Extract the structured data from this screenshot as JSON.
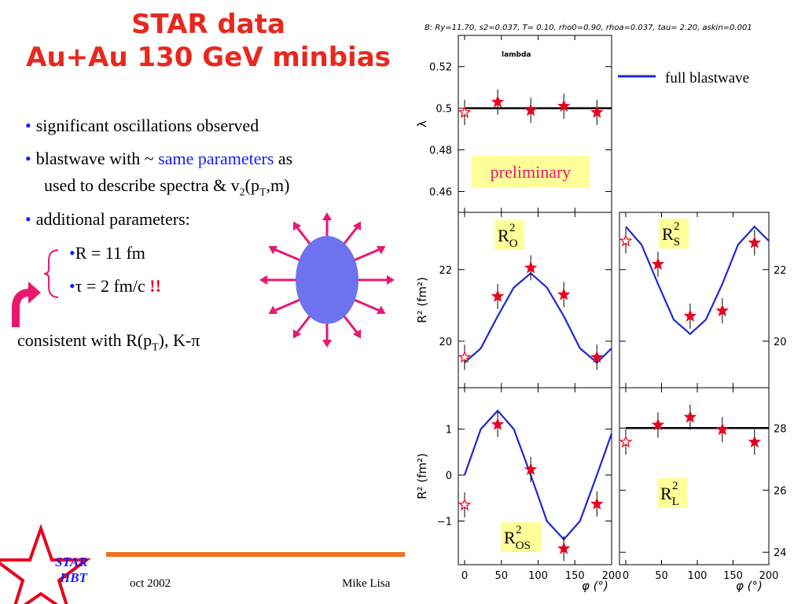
{
  "slide": {
    "title_line1": "STAR data",
    "title_line2": "Au+Au 130 GeV minbias",
    "bullets": [
      "significant oscillations observed",
      "additional parameters:"
    ],
    "bullet2": {
      "pre": "blastwave with ~ ",
      "highlight": "same parameters",
      "post": " as",
      "line2_pre": "used to describe spectra & v",
      "line2_sub1": "2",
      "line2_mid": "(p",
      "line2_sub2": "T",
      "line2_end": ",m)"
    },
    "sub_bullets": [
      {
        "text": "R = 11 fm",
        "emph": ""
      },
      {
        "text": "τ = 2 fm/c ",
        "emph": "!!"
      }
    ],
    "consistent": {
      "pre": "consistent with R(p",
      "sub": "T",
      "post": "), K-π"
    },
    "footer": {
      "date": "oct 2002",
      "author": "Mike Lisa",
      "logo_line1": "STAR",
      "logo_line2": "HBT"
    },
    "colors": {
      "title": "#e8281e",
      "accent_blue": "#1a1aff",
      "ellipse": "#6f72ef",
      "arrows": "#e8186e",
      "logo_star": "#e8001e"
    }
  },
  "chart_data": {
    "type": "scatter",
    "header": "B: Ry=11.70, s2=0.037, T= 0.10, rho0=0.90, rhoa=0.037, tau= 2.20, askin=0.001",
    "legend": "full blastwave",
    "preliminary": "preliminary",
    "x_label": "φ (°)",
    "x_ticks": [
      0,
      50,
      100,
      150,
      200
    ],
    "panels": [
      {
        "id": "lambda",
        "label": "lambda",
        "ylabel": "λ",
        "ylim": [
          0.45,
          0.535
        ],
        "yticks": [
          0.46,
          0.48,
          0.5,
          0.52
        ],
        "ytick_labels": [
          "0.46",
          "0.48",
          "0.5",
          "0.52"
        ],
        "points": [
          [
            0,
            0.498
          ],
          [
            45,
            0.503
          ],
          [
            90,
            0.499
          ],
          [
            135,
            0.501
          ],
          [
            180,
            0.498
          ]
        ],
        "hollow": [
          0
        ],
        "line_kind": "flat",
        "line": [
          [
            0,
            0.5
          ],
          [
            200,
            0.5
          ]
        ]
      },
      {
        "id": "Ro",
        "label_main": "R",
        "label_sub": "O",
        "label_sup": "2",
        "ylabel": "R² (fm²)",
        "ylim": [
          18.7,
          23.6
        ],
        "yticks": [
          20,
          22
        ],
        "ytick_labels": [
          "20",
          "22"
        ],
        "points": [
          [
            0,
            19.55
          ],
          [
            45,
            21.25
          ],
          [
            90,
            22.05
          ],
          [
            135,
            21.3
          ],
          [
            180,
            19.55
          ]
        ],
        "hollow": [
          0
        ],
        "line_kind": "curve",
        "line": [
          [
            0,
            19.4
          ],
          [
            22,
            19.8
          ],
          [
            45,
            20.7
          ],
          [
            67,
            21.5
          ],
          [
            90,
            21.9
          ],
          [
            112,
            21.5
          ],
          [
            135,
            20.7
          ],
          [
            157,
            19.8
          ],
          [
            180,
            19.4
          ],
          [
            200,
            19.8
          ]
        ]
      },
      {
        "id": "Rs",
        "label_main": "R",
        "label_sub": "S",
        "label_sup": "2",
        "ylabel": "",
        "ylim": [
          18.7,
          23.6
        ],
        "yticks": [
          20,
          22
        ],
        "ytick_labels": [
          "20",
          "22"
        ],
        "points": [
          [
            0,
            22.8
          ],
          [
            45,
            22.15
          ],
          [
            90,
            20.7
          ],
          [
            135,
            20.85
          ],
          [
            180,
            22.75
          ]
        ],
        "hollow": [
          0
        ],
        "line_kind": "curve",
        "line": [
          [
            0,
            23.2
          ],
          [
            22,
            22.7
          ],
          [
            45,
            21.6
          ],
          [
            67,
            20.6
          ],
          [
            90,
            20.2
          ],
          [
            112,
            20.6
          ],
          [
            135,
            21.6
          ],
          [
            157,
            22.7
          ],
          [
            180,
            23.2
          ],
          [
            200,
            22.8
          ]
        ]
      },
      {
        "id": "Ros",
        "label_main": "R",
        "label_sub": "OS",
        "label_sup": "2",
        "ylabel": "R² (fm²)",
        "ylim": [
          -1.95,
          1.9
        ],
        "yticks": [
          -1,
          0,
          1
        ],
        "ytick_labels": [
          "−1",
          "0",
          "1"
        ],
        "points": [
          [
            0,
            -0.65
          ],
          [
            45,
            1.1
          ],
          [
            90,
            0.12
          ],
          [
            135,
            -1.6
          ],
          [
            180,
            -0.63
          ]
        ],
        "hollow": [
          0
        ],
        "line_kind": "curve",
        "line": [
          [
            0,
            0.0
          ],
          [
            22,
            1.0
          ],
          [
            45,
            1.4
          ],
          [
            67,
            1.0
          ],
          [
            90,
            0.0
          ],
          [
            112,
            -1.0
          ],
          [
            135,
            -1.4
          ],
          [
            157,
            -1.0
          ],
          [
            180,
            0.0
          ],
          [
            200,
            0.9
          ]
        ]
      },
      {
        "id": "Rl",
        "label_main": "R",
        "label_sub": "L",
        "label_sup": "2",
        "ylabel": "",
        "ylim": [
          23.6,
          29.3
        ],
        "yticks": [
          24,
          26,
          28
        ],
        "ytick_labels": [
          "24",
          "26",
          "28"
        ],
        "points": [
          [
            0,
            27.55
          ],
          [
            45,
            28.1
          ],
          [
            90,
            28.35
          ],
          [
            135,
            27.95
          ],
          [
            180,
            27.55
          ]
        ],
        "hollow": [
          0
        ],
        "line_kind": "flat",
        "line": [
          [
            0,
            28.0
          ],
          [
            200,
            28.0
          ]
        ]
      }
    ]
  }
}
